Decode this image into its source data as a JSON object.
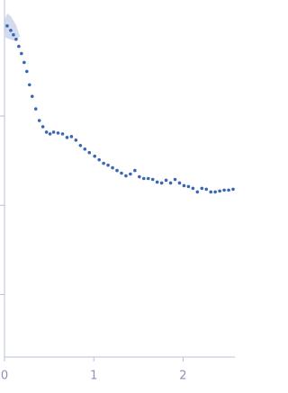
{
  "chart_data": {
    "type": "scatter",
    "color": "#3a67b5",
    "x": [
      0.03,
      0.07,
      0.1,
      0.13,
      0.16,
      0.19,
      0.22,
      0.25,
      0.28,
      0.31,
      0.35,
      0.39,
      0.43,
      0.47,
      0.51,
      0.55,
      0.6,
      0.65,
      0.7,
      0.75,
      0.8,
      0.85,
      0.9,
      0.95,
      1.01,
      1.06,
      1.11,
      1.16,
      1.21,
      1.26,
      1.31,
      1.36,
      1.41,
      1.46,
      1.51,
      1.56,
      1.61,
      1.66,
      1.71,
      1.76,
      1.81,
      1.86,
      1.91,
      1.96,
      2.01,
      2.06,
      2.11,
      2.16,
      2.21,
      2.26,
      2.31,
      2.36,
      2.41,
      2.46,
      2.51,
      2.56
    ],
    "values": [
      4.01,
      3.96,
      3.91,
      3.86,
      3.78,
      3.7,
      3.6,
      3.5,
      3.35,
      3.22,
      3.08,
      2.95,
      2.88,
      2.82,
      2.8,
      2.82,
      2.81,
      2.8,
      2.76,
      2.77,
      2.73,
      2.67,
      2.63,
      2.59,
      2.55,
      2.51,
      2.47,
      2.45,
      2.42,
      2.39,
      2.36,
      2.33,
      2.35,
      2.39,
      2.32,
      2.3,
      2.3,
      2.29,
      2.26,
      2.25,
      2.28,
      2.25,
      2.29,
      2.25,
      2.22,
      2.21,
      2.19,
      2.15,
      2.19,
      2.18,
      2.15,
      2.15,
      2.16,
      2.17,
      2.17,
      2.18
    ],
    "xlim": [
      0,
      2.58
    ],
    "xticks": [
      0,
      1,
      2
    ],
    "ylim": [
      0.3,
      4.3
    ],
    "yticks": [
      1,
      2,
      3
    ]
  }
}
